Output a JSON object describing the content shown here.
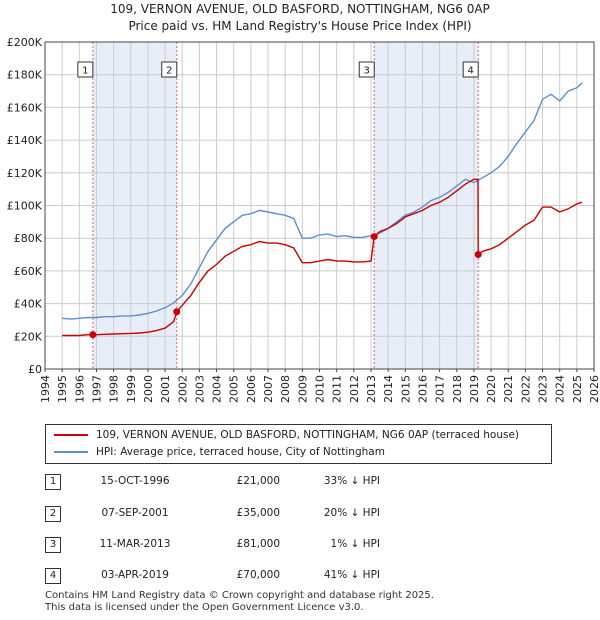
{
  "title": {
    "line1": "109, VERNON AVENUE, OLD BASFORD, NOTTINGHAM, NG6 0AP",
    "line2": "Price paid vs. HM Land Registry's House Price Index (HPI)"
  },
  "legend": {
    "property_label": "109, VERNON AVENUE, OLD BASFORD, NOTTINGHAM, NG6 0AP (terraced house)",
    "hpi_label": "HPI: Average price, terraced house, City of Nottingham"
  },
  "colors": {
    "property_line": "#cc0000",
    "hpi_line": "#5b8fd0",
    "shade": "#e8eef8",
    "grid": "#cccccc",
    "vline": "#e06666"
  },
  "transactions": [
    {
      "num": "1",
      "date": "15-OCT-1996",
      "price": "£21,000",
      "hpi_diff": "33% ↓ HPI"
    },
    {
      "num": "2",
      "date": "07-SEP-2001",
      "price": "£35,000",
      "hpi_diff": "20% ↓ HPI"
    },
    {
      "num": "3",
      "date": "11-MAR-2013",
      "price": "£81,000",
      "hpi_diff": "1% ↓ HPI"
    },
    {
      "num": "4",
      "date": "03-APR-2019",
      "price": "£70,000",
      "hpi_diff": "41% ↓ HPI"
    }
  ],
  "footer": {
    "line1": "Contains HM Land Registry data © Crown copyright and database right 2025.",
    "line2": "This data is licensed under the Open Government Licence v3.0."
  },
  "chart_data": {
    "type": "line",
    "title": "Price paid vs. HM Land Registry's House Price Index (HPI)",
    "xlabel": "",
    "ylabel": "",
    "xlim": [
      1994,
      2026
    ],
    "ylim": [
      0,
      200000
    ],
    "x_ticks": [
      "1994",
      "1995",
      "1996",
      "1997",
      "1998",
      "1999",
      "2000",
      "2001",
      "2002",
      "2003",
      "2004",
      "2005",
      "2006",
      "2007",
      "2008",
      "2009",
      "2010",
      "2011",
      "2012",
      "2013",
      "2014",
      "2015",
      "2016",
      "2017",
      "2018",
      "2019",
      "2020",
      "2021",
      "2022",
      "2023",
      "2024",
      "2025",
      "2026"
    ],
    "y_ticks": [
      {
        "value": 0,
        "label": "£0"
      },
      {
        "value": 20000,
        "label": "£20K"
      },
      {
        "value": 40000,
        "label": "£40K"
      },
      {
        "value": 60000,
        "label": "£60K"
      },
      {
        "value": 80000,
        "label": "£80K"
      },
      {
        "value": 100000,
        "label": "£100K"
      },
      {
        "value": 120000,
        "label": "£120K"
      },
      {
        "value": 140000,
        "label": "£140K"
      },
      {
        "value": 160000,
        "label": "£160K"
      },
      {
        "value": 180000,
        "label": "£180K"
      },
      {
        "value": 200000,
        "label": "£200K"
      }
    ],
    "shaded_ranges": [
      [
        1996.79,
        2001.68
      ],
      [
        2013.19,
        2019.25
      ]
    ],
    "sales": [
      {
        "label": "1",
        "x": 1996.79,
        "y": 21000
      },
      {
        "label": "2",
        "x": 2001.68,
        "y": 35000
      },
      {
        "label": "3",
        "x": 2013.19,
        "y": 81000
      },
      {
        "label": "4",
        "x": 2019.25,
        "y": 70000
      }
    ],
    "series": [
      {
        "name": "HPI: Average price, terraced house, City of Nottingham",
        "x": [
          1995.0,
          1995.5,
          1996.0,
          1996.5,
          1997.0,
          1997.5,
          1998.0,
          1998.5,
          1999.0,
          1999.5,
          2000.0,
          2000.5,
          2001.0,
          2001.5,
          2002.0,
          2002.5,
          2003.0,
          2003.5,
          2004.0,
          2004.5,
          2005.0,
          2005.5,
          2006.0,
          2006.5,
          2007.0,
          2007.5,
          2008.0,
          2008.5,
          2009.0,
          2009.5,
          2010.0,
          2010.5,
          2011.0,
          2011.5,
          2012.0,
          2012.5,
          2013.0,
          2013.5,
          2014.0,
          2014.5,
          2015.0,
          2015.5,
          2016.0,
          2016.5,
          2017.0,
          2017.5,
          2018.0,
          2018.5,
          2019.0,
          2019.5,
          2020.0,
          2020.5,
          2021.0,
          2021.5,
          2022.0,
          2022.5,
          2023.0,
          2023.5,
          2024.0,
          2024.5,
          2025.0,
          2025.3
        ],
        "values": [
          31000,
          30500,
          31000,
          31500,
          31500,
          32000,
          32000,
          32500,
          32500,
          33000,
          34000,
          35500,
          37500,
          40500,
          45000,
          52000,
          62000,
          72000,
          79000,
          86000,
          90000,
          94000,
          95000,
          97000,
          96000,
          95000,
          94000,
          92000,
          80000,
          80000,
          82000,
          82500,
          81000,
          81500,
          80500,
          80500,
          81500,
          83000,
          86000,
          90000,
          94000,
          96000,
          99000,
          103000,
          105000,
          108000,
          112000,
          116000,
          114000,
          117000,
          120000,
          124000,
          130000,
          138000,
          145000,
          152000,
          165000,
          168000,
          164000,
          170000,
          172000,
          175000
        ]
      },
      {
        "name": "109, VERNON AVENUE, OLD BASFORD, NOTTINGHAM, NG6 0AP (terraced house)",
        "x": [
          1995.0,
          1995.5,
          1996.0,
          1996.5,
          1996.79,
          1997.0,
          1997.5,
          1998.0,
          1998.5,
          1999.0,
          1999.5,
          2000.0,
          2000.5,
          2001.0,
          2001.5,
          2001.68,
          2002.0,
          2002.5,
          2003.0,
          2003.5,
          2004.0,
          2004.5,
          2005.0,
          2005.5,
          2006.0,
          2006.5,
          2007.0,
          2007.5,
          2008.0,
          2008.5,
          2009.0,
          2009.5,
          2010.0,
          2010.5,
          2011.0,
          2011.5,
          2012.0,
          2012.5,
          2013.0,
          2013.19,
          2013.5,
          2014.0,
          2014.5,
          2015.0,
          2015.5,
          2016.0,
          2016.5,
          2017.0,
          2017.5,
          2018.0,
          2018.5,
          2019.0,
          2019.24,
          2019.25,
          2019.5,
          2020.0,
          2020.5,
          2021.0,
          2021.5,
          2022.0,
          2022.5,
          2023.0,
          2023.5,
          2024.0,
          2024.5,
          2025.0,
          2025.3
        ],
        "values": [
          20500,
          20500,
          20500,
          21000,
          21000,
          21000,
          21200,
          21400,
          21600,
          21800,
          22000,
          22500,
          23500,
          25000,
          29000,
          35000,
          39000,
          45000,
          53000,
          60000,
          64000,
          69000,
          72000,
          75000,
          76000,
          78000,
          77000,
          77000,
          76000,
          74000,
          65000,
          65000,
          66000,
          67000,
          66000,
          66000,
          65500,
          65500,
          66000,
          81000,
          84000,
          86000,
          89000,
          93000,
          95000,
          97000,
          100000,
          102000,
          105000,
          109000,
          113000,
          116000,
          116000,
          70000,
          72000,
          73500,
          76000,
          80000,
          84000,
          88000,
          91000,
          99000,
          99000,
          96000,
          98000,
          101000,
          102000
        ]
      }
    ]
  }
}
